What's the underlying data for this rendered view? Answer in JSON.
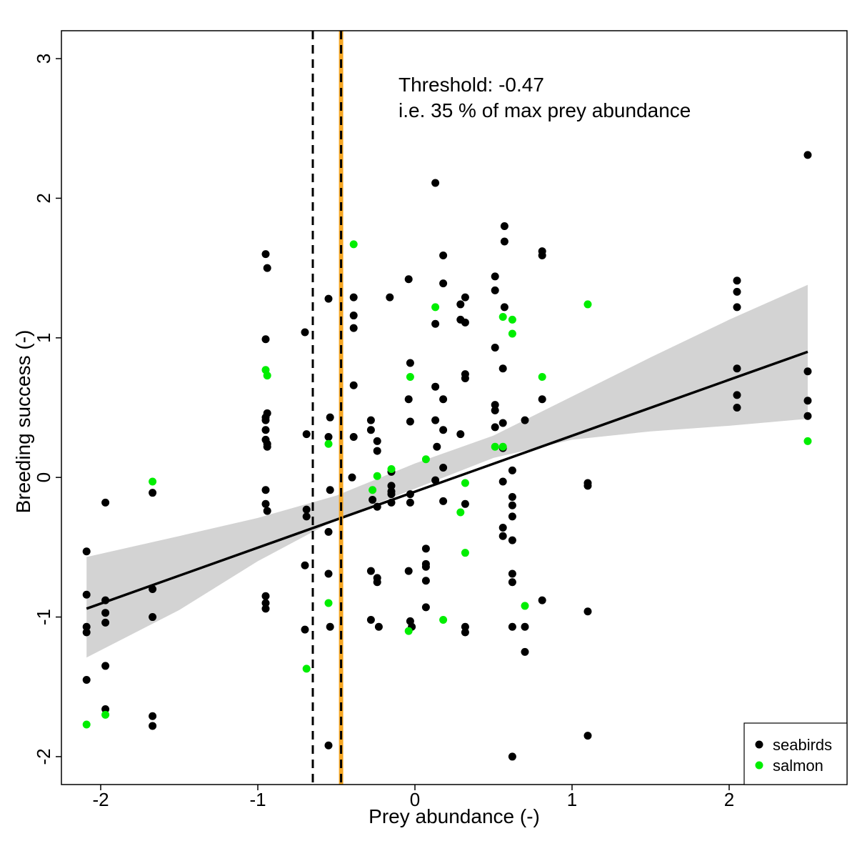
{
  "chart_data": {
    "type": "scatter",
    "xlabel": "Prey abundance (-)",
    "ylabel": "Breeding success (-)",
    "xlim": [
      -2.25,
      2.75
    ],
    "ylim": [
      -2.2,
      3.2
    ],
    "x_ticks": [
      -2,
      -1,
      0,
      1,
      2
    ],
    "x_tick_labels": [
      "-2",
      "-1",
      "0",
      "1",
      "2"
    ],
    "y_ticks": [
      -2,
      -1,
      0,
      1,
      2,
      3
    ],
    "y_tick_labels": [
      "-2",
      "-1",
      "0",
      "1",
      "2",
      "3"
    ],
    "grid": false,
    "legend_position": "bottom-right",
    "annotations": [
      "Threshold:  -0.47",
      "i.e. 35 % of max prey abundance"
    ],
    "threshold_lines": [
      {
        "x": -0.65,
        "style": "dashed",
        "color": "#000000"
      },
      {
        "x": -0.47,
        "style": "solid",
        "color": "#f5a623"
      },
      {
        "x": -0.47,
        "style": "dashed",
        "color": "#000000"
      }
    ],
    "trend_line": {
      "x": [
        -2.09,
        2.5
      ],
      "y": [
        -0.94,
        0.9
      ]
    },
    "confidence_band": {
      "x": [
        -2.09,
        -1.5,
        -1.0,
        -0.5,
        0.0,
        0.5,
        1.0,
        1.5,
        2.0,
        2.5
      ],
      "upper": [
        -0.57,
        -0.42,
        -0.29,
        -0.13,
        0.1,
        0.3,
        0.58,
        0.86,
        1.13,
        1.38
      ],
      "lower": [
        -1.29,
        -0.95,
        -0.6,
        -0.3,
        -0.08,
        0.14,
        0.27,
        0.33,
        0.37,
        0.42
      ]
    },
    "series": [
      {
        "name": "seabirds",
        "color": "#000000",
        "points": [
          [
            -2.09,
            -0.53
          ],
          [
            -2.09,
            -0.84
          ],
          [
            -2.09,
            -1.07
          ],
          [
            -2.09,
            -1.11
          ],
          [
            -2.09,
            -1.45
          ],
          [
            -1.97,
            -0.18
          ],
          [
            -1.97,
            -0.88
          ],
          [
            -1.97,
            -0.97
          ],
          [
            -1.97,
            -1.04
          ],
          [
            -1.97,
            -1.35
          ],
          [
            -1.97,
            -1.66
          ],
          [
            -1.67,
            -0.11
          ],
          [
            -1.67,
            -0.8
          ],
          [
            -1.67,
            -1.0
          ],
          [
            -1.67,
            -1.71
          ],
          [
            -1.67,
            -1.78
          ],
          [
            -0.95,
            1.6
          ],
          [
            -0.94,
            1.5
          ],
          [
            -0.95,
            0.99
          ],
          [
            -0.95,
            0.43
          ],
          [
            -0.94,
            0.46
          ],
          [
            -0.95,
            0.41
          ],
          [
            -0.95,
            0.34
          ],
          [
            -0.95,
            0.27
          ],
          [
            -0.94,
            0.24
          ],
          [
            -0.94,
            0.22
          ],
          [
            -0.95,
            -0.09
          ],
          [
            -0.95,
            -0.19
          ],
          [
            -0.94,
            -0.24
          ],
          [
            -0.95,
            -0.85
          ],
          [
            -0.95,
            -0.9
          ],
          [
            -0.95,
            -0.94
          ],
          [
            -0.7,
            1.04
          ],
          [
            -0.69,
            0.31
          ],
          [
            -0.69,
            -0.23
          ],
          [
            -0.69,
            -0.28
          ],
          [
            -0.7,
            -0.63
          ],
          [
            -0.7,
            -1.09
          ],
          [
            -0.55,
            1.28
          ],
          [
            -0.54,
            0.43
          ],
          [
            -0.55,
            0.29
          ],
          [
            -0.54,
            -0.09
          ],
          [
            -0.55,
            -0.39
          ],
          [
            -0.55,
            -0.69
          ],
          [
            -0.54,
            -1.07
          ],
          [
            -0.55,
            -1.92
          ],
          [
            -0.39,
            1.29
          ],
          [
            -0.39,
            1.16
          ],
          [
            -0.39,
            1.07
          ],
          [
            -0.39,
            0.66
          ],
          [
            -0.39,
            0.29
          ],
          [
            -0.4,
            0.0
          ],
          [
            -0.28,
            0.41
          ],
          [
            -0.28,
            0.34
          ],
          [
            -0.27,
            -0.16
          ],
          [
            -0.28,
            -0.67
          ],
          [
            -0.28,
            -1.02
          ],
          [
            -0.24,
            0.26
          ],
          [
            -0.24,
            0.19
          ],
          [
            -0.24,
            -0.21
          ],
          [
            -0.24,
            -0.72
          ],
          [
            -0.24,
            -0.75
          ],
          [
            -0.23,
            -1.07
          ],
          [
            -0.16,
            1.29
          ],
          [
            -0.15,
            0.04
          ],
          [
            -0.15,
            -0.06
          ],
          [
            -0.15,
            -0.1
          ],
          [
            -0.15,
            -0.12
          ],
          [
            -0.15,
            -0.18
          ],
          [
            -0.04,
            1.42
          ],
          [
            -0.03,
            0.82
          ],
          [
            -0.04,
            0.56
          ],
          [
            -0.03,
            0.4
          ],
          [
            -0.03,
            -0.12
          ],
          [
            -0.03,
            -0.18
          ],
          [
            -0.03,
            -1.03
          ],
          [
            -0.02,
            -1.07
          ],
          [
            -0.04,
            -0.67
          ],
          [
            0.07,
            -0.51
          ],
          [
            0.07,
            -0.62
          ],
          [
            0.07,
            -0.64
          ],
          [
            0.07,
            -0.74
          ],
          [
            0.07,
            -0.93
          ],
          [
            0.13,
            2.11
          ],
          [
            0.13,
            1.1
          ],
          [
            0.13,
            0.65
          ],
          [
            0.13,
            0.41
          ],
          [
            0.14,
            0.22
          ],
          [
            0.13,
            -0.02
          ],
          [
            0.18,
            1.59
          ],
          [
            0.18,
            1.39
          ],
          [
            0.18,
            0.56
          ],
          [
            0.18,
            0.34
          ],
          [
            0.18,
            0.07
          ],
          [
            0.18,
            -0.17
          ],
          [
            0.29,
            1.24
          ],
          [
            0.29,
            1.13
          ],
          [
            0.29,
            0.31
          ],
          [
            0.32,
            1.29
          ],
          [
            0.32,
            1.11
          ],
          [
            0.32,
            0.74
          ],
          [
            0.32,
            0.71
          ],
          [
            0.32,
            -0.19
          ],
          [
            0.32,
            -1.07
          ],
          [
            0.32,
            -1.11
          ],
          [
            0.51,
            1.44
          ],
          [
            0.51,
            1.34
          ],
          [
            0.51,
            0.93
          ],
          [
            0.51,
            0.52
          ],
          [
            0.51,
            0.48
          ],
          [
            0.51,
            0.36
          ],
          [
            0.57,
            1.8
          ],
          [
            0.57,
            1.69
          ],
          [
            0.57,
            1.22
          ],
          [
            0.56,
            0.78
          ],
          [
            0.56,
            0.39
          ],
          [
            0.56,
            0.21
          ],
          [
            0.56,
            -0.03
          ],
          [
            0.56,
            -0.36
          ],
          [
            0.56,
            -0.42
          ],
          [
            0.62,
            0.05
          ],
          [
            0.62,
            -0.14
          ],
          [
            0.62,
            -0.2
          ],
          [
            0.62,
            -0.28
          ],
          [
            0.62,
            -0.45
          ],
          [
            0.62,
            -0.69
          ],
          [
            0.62,
            -0.75
          ],
          [
            0.62,
            -1.07
          ],
          [
            0.62,
            -2.0
          ],
          [
            0.7,
            0.41
          ],
          [
            0.7,
            -1.07
          ],
          [
            0.7,
            -1.25
          ],
          [
            0.81,
            1.62
          ],
          [
            0.81,
            1.59
          ],
          [
            0.81,
            0.56
          ],
          [
            0.81,
            -0.88
          ],
          [
            1.1,
            -0.04
          ],
          [
            1.1,
            -0.06
          ],
          [
            1.1,
            -0.96
          ],
          [
            1.1,
            -1.85
          ],
          [
            2.05,
            1.41
          ],
          [
            2.05,
            1.33
          ],
          [
            2.05,
            1.22
          ],
          [
            2.05,
            0.78
          ],
          [
            2.05,
            0.59
          ],
          [
            2.05,
            0.5
          ],
          [
            2.5,
            2.31
          ],
          [
            2.5,
            0.76
          ],
          [
            2.5,
            0.55
          ],
          [
            2.5,
            0.44
          ]
        ]
      },
      {
        "name": "salmon",
        "color": "#00ee00",
        "points": [
          [
            -2.09,
            -1.77
          ],
          [
            -1.97,
            -1.7
          ],
          [
            -1.67,
            -0.03
          ],
          [
            -0.95,
            0.77
          ],
          [
            -0.94,
            0.73
          ],
          [
            -0.69,
            -1.37
          ],
          [
            -0.55,
            0.24
          ],
          [
            -0.55,
            -0.9
          ],
          [
            -0.39,
            1.67
          ],
          [
            -0.27,
            -0.09
          ],
          [
            -0.24,
            0.01
          ],
          [
            -0.15,
            0.06
          ],
          [
            -0.03,
            0.72
          ],
          [
            -0.04,
            -1.1
          ],
          [
            0.07,
            0.13
          ],
          [
            0.13,
            1.22
          ],
          [
            0.18,
            -1.02
          ],
          [
            0.29,
            -0.25
          ],
          [
            0.32,
            -0.04
          ],
          [
            0.32,
            -0.54
          ],
          [
            0.51,
            0.22
          ],
          [
            0.56,
            0.22
          ],
          [
            0.56,
            1.15
          ],
          [
            0.62,
            1.13
          ],
          [
            0.62,
            1.03
          ],
          [
            0.7,
            -0.92
          ],
          [
            0.81,
            0.72
          ],
          [
            1.1,
            1.24
          ],
          [
            2.5,
            0.26
          ]
        ]
      }
    ]
  }
}
